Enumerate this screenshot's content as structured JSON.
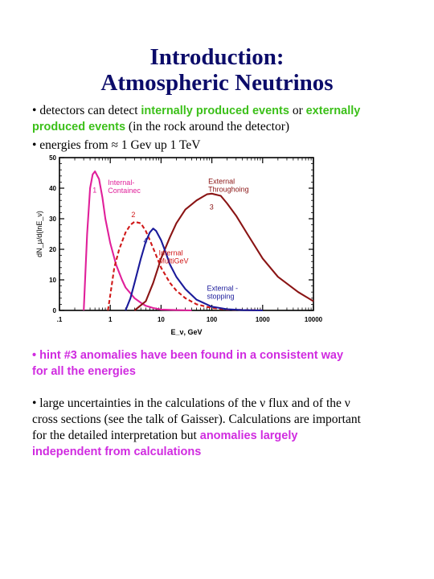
{
  "title": {
    "line1": "Introduction:",
    "line2": "Atmospheric Neutrinos"
  },
  "bullets": {
    "b1_bullet": "• ",
    "b1_pre": "detectors can detect ",
    "b1_green1": "internally produced events",
    "b1_mid": " or ",
    "b1_green2": "externally",
    "b1_green3": "produced events",
    "b1_post": " (in the rock around the detector)",
    "b2_text": "• energies from ≈ 1 Gev up  1 TeV",
    "b3_line1": "• hint #3 anomalies have been found in  a consistent way",
    "b3_line2": "for all the energies",
    "b4_line1": "• large uncertainties in the calculations of the ν flux and of the ν",
    "b4_line2": "cross sections (see the talk of  Gaisser). Calculations are important",
    "b4_line3_pre": "for the detailed interpretation but ",
    "b4_line3_mag": "anomalies largely",
    "b4_line4": "independent  from  calculations"
  },
  "chart_data": {
    "type": "line",
    "xscale": "log",
    "xlim": [
      0.1,
      10000
    ],
    "ylim": [
      0,
      50
    ],
    "xlabel": "E_ν, GeV",
    "ylabel": "dN_μ/d(lnE_ν)",
    "x_ticks": [
      ".1",
      "1",
      "10",
      "100",
      "1000",
      "10000"
    ],
    "y_ticks": [
      "0",
      "10",
      "20",
      "30",
      "40",
      "50"
    ],
    "colors": {
      "internal_contained": "#e0209a",
      "internal_multigev": "#d01818",
      "external_throughgoing": "#8a1414",
      "external_stopping": "#1a1a9a"
    },
    "series": [
      {
        "name": "Internal-Contained",
        "number": "1",
        "style": "solid",
        "x": [
          0.3,
          0.35,
          0.4,
          0.45,
          0.5,
          0.6,
          0.7,
          0.8,
          1.0,
          1.3,
          1.7,
          2,
          3,
          4,
          5,
          7,
          10,
          20,
          40
        ],
        "y": [
          0,
          25,
          40,
          44.5,
          45.5,
          43,
          37,
          30,
          22,
          15,
          10,
          7.5,
          4,
          2.5,
          1.5,
          0.8,
          0.3,
          0.1,
          0
        ]
      },
      {
        "name": "Internal MultiGeV",
        "number": "2",
        "style": "dashed",
        "x": [
          0.9,
          1.0,
          1.2,
          1.5,
          2,
          2.5,
          3,
          4,
          5,
          6,
          8,
          10,
          15,
          20,
          30,
          50,
          100,
          200,
          500,
          1000
        ],
        "y": [
          0,
          5,
          14,
          20,
          25.5,
          28,
          29,
          28.5,
          26,
          23,
          18,
          14,
          9,
          6.5,
          4,
          2,
          0.8,
          0.3,
          0.1,
          0
        ]
      },
      {
        "name": "External Throughgoing",
        "number": "3",
        "style": "solid",
        "x": [
          3,
          5,
          7,
          10,
          15,
          20,
          30,
          50,
          80,
          100,
          150,
          200,
          300,
          500,
          1000,
          2000,
          5000,
          10000
        ],
        "y": [
          0,
          3,
          9,
          17,
          24,
          28.5,
          33,
          36,
          38,
          38.2,
          37.5,
          35,
          31,
          25,
          17,
          11,
          6,
          3
        ]
      },
      {
        "name": "External - stopping",
        "number": "4",
        "style": "solid",
        "x": [
          2,
          2.5,
          3,
          4,
          5,
          6,
          7,
          8,
          10,
          12,
          15,
          20,
          30,
          50,
          100,
          200,
          400,
          1000
        ],
        "y": [
          0,
          4,
          9,
          17,
          22.5,
          25.5,
          26.8,
          26,
          23,
          19.5,
          15,
          11,
          7,
          3.5,
          1.2,
          0.4,
          0.1,
          0
        ]
      }
    ],
    "annotations": [
      {
        "text": "Internal-",
        "text2": "Containec",
        "series": "internal_contained"
      },
      {
        "text": "External",
        "text2": "Throughoing",
        "series": "external_throughgoing"
      },
      {
        "text": "Internal",
        "text2": "MultiGeV",
        "series": "internal_multigev"
      },
      {
        "text": "External -",
        "text2": "stopping",
        "series": "external_stopping"
      }
    ]
  }
}
